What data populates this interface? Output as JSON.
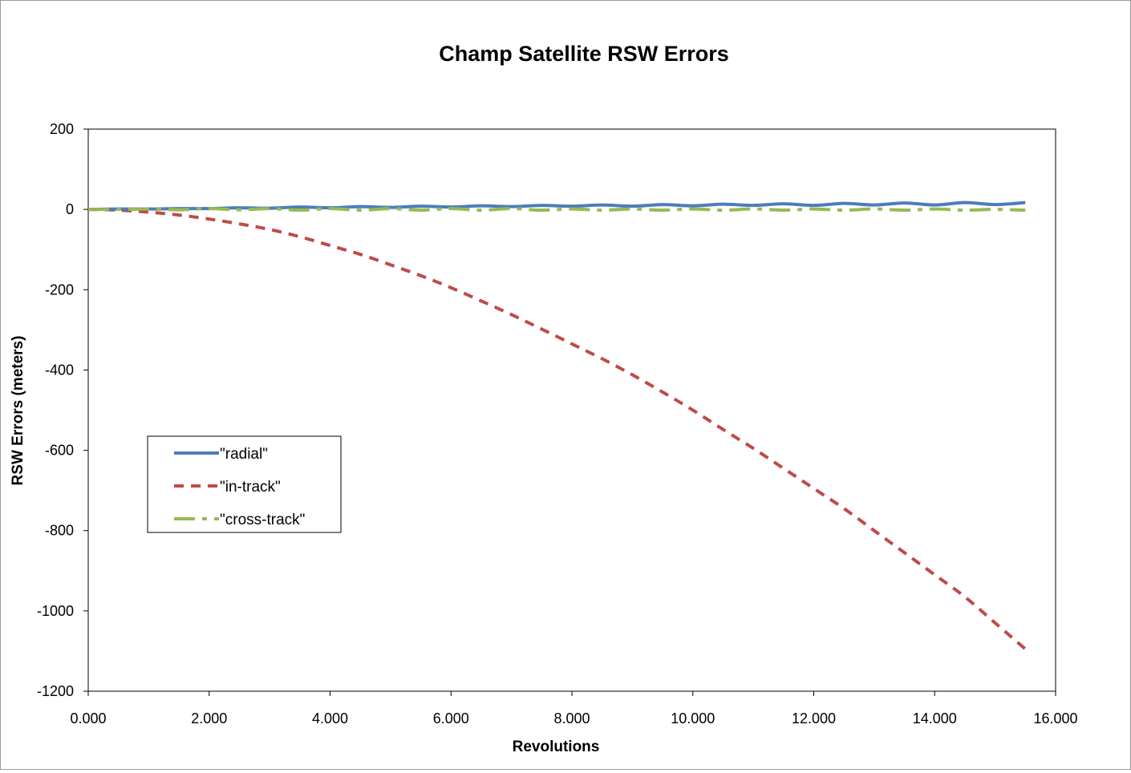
{
  "chart_data": {
    "type": "line",
    "title": "Champ Satellite RSW Errors",
    "xlabel": "Revolutions",
    "ylabel": "RSW Errors (meters)",
    "xlim": [
      0,
      16
    ],
    "ylim": [
      -1200,
      200
    ],
    "x_ticks": [
      0,
      2,
      4,
      6,
      8,
      10,
      12,
      14,
      16
    ],
    "x_tick_labels": [
      "0.000",
      "2.000",
      "4.000",
      "6.000",
      "8.000",
      "10.000",
      "12.000",
      "14.000",
      "16.000"
    ],
    "y_ticks": [
      200,
      0,
      -200,
      -400,
      -600,
      -800,
      -1000,
      -1200
    ],
    "y_tick_labels": [
      "200",
      "0",
      "-200",
      "-400",
      "-600",
      "-800",
      "-1000",
      "-1200"
    ],
    "legend_position": "left-middle",
    "grid": false,
    "x": [
      0.0,
      0.5,
      1.0,
      1.5,
      2.0,
      2.5,
      3.0,
      3.5,
      4.0,
      4.5,
      5.0,
      5.5,
      6.0,
      6.5,
      7.0,
      7.5,
      8.0,
      8.5,
      9.0,
      9.5,
      10.0,
      10.5,
      11.0,
      11.5,
      12.0,
      12.5,
      13.0,
      13.5,
      14.0,
      14.5,
      15.0,
      15.5
    ],
    "series": [
      {
        "name": "\"radial\"",
        "color": "#4a7ebb",
        "dash": "solid",
        "values": [
          0,
          1,
          1,
          2,
          2,
          4,
          3,
          6,
          4,
          7,
          5,
          8,
          6,
          9,
          7,
          10,
          8,
          11,
          8,
          12,
          9,
          13,
          10,
          14,
          10,
          15,
          11,
          16,
          11,
          17,
          12,
          17
        ]
      },
      {
        "name": "\"in-track\"",
        "color": "#be4b48",
        "dash": "short",
        "values": [
          0,
          -2,
          -7,
          -14,
          -24,
          -36,
          -50,
          -68,
          -90,
          -112,
          -138,
          -165,
          -195,
          -228,
          -262,
          -298,
          -335,
          -372,
          -412,
          -455,
          -500,
          -548,
          -595,
          -645,
          -695,
          -745,
          -800,
          -855,
          -910,
          -965,
          -1030,
          -1095
        ]
      },
      {
        "name": "\"cross-track\"",
        "color": "#98b954",
        "dash": "long",
        "values": [
          0,
          0,
          1,
          -1,
          2,
          -1,
          2,
          -2,
          2,
          -2,
          2,
          -2,
          2,
          -2,
          2,
          -2,
          1,
          -2,
          1,
          -2,
          1,
          -2,
          1,
          -2,
          1,
          -2,
          1,
          -2,
          1,
          -2,
          0,
          -2
        ]
      }
    ]
  }
}
